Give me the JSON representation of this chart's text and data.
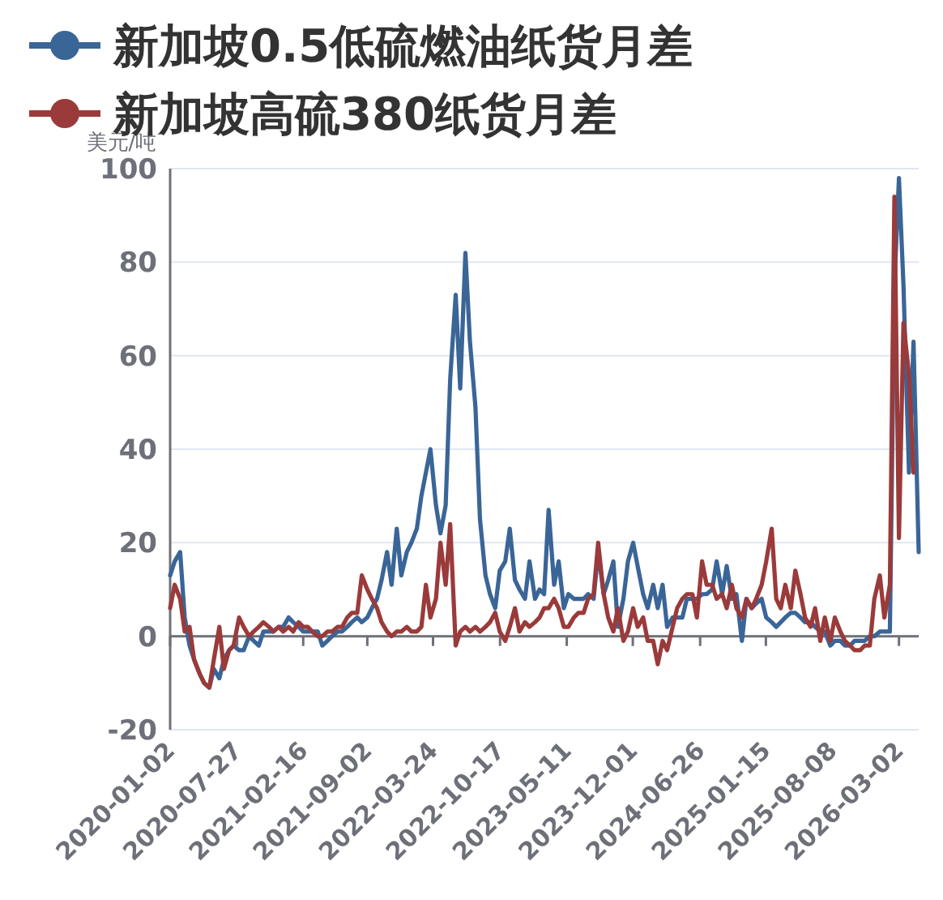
{
  "chart_data": {
    "type": "line",
    "ylabel": "美元/吨",
    "x": [
      "2020-01-02",
      "2020-01-16",
      "2020-02-02",
      "2020-02-16",
      "2020-03-02",
      "2020-03-16",
      "2020-04-02",
      "2020-04-16",
      "2020-05-02",
      "2020-05-16",
      "2020-06-02",
      "2020-06-16",
      "2020-07-02",
      "2020-07-16",
      "2020-08-02",
      "2020-08-16",
      "2020-09-02",
      "2020-09-16",
      "2020-10-02",
      "2020-10-16",
      "2020-11-02",
      "2020-11-16",
      "2020-12-02",
      "2020-12-16",
      "2021-01-02",
      "2021-01-16",
      "2021-02-02",
      "2021-02-16",
      "2021-03-02",
      "2021-03-16",
      "2021-04-02",
      "2021-04-16",
      "2021-05-02",
      "2021-05-16",
      "2021-06-02",
      "2021-06-16",
      "2021-07-02",
      "2021-07-16",
      "2021-08-02",
      "2021-08-16",
      "2021-09-02",
      "2021-09-16",
      "2021-10-02",
      "2021-10-16",
      "2021-11-02",
      "2021-11-16",
      "2021-12-02",
      "2021-12-16",
      "2022-01-02",
      "2022-01-16",
      "2022-02-02",
      "2022-02-16",
      "2022-03-02",
      "2022-03-16",
      "2022-04-02",
      "2022-04-16",
      "2022-05-02",
      "2022-05-16",
      "2022-06-02",
      "2022-06-16",
      "2022-07-02",
      "2022-07-16",
      "2022-08-02",
      "2022-08-16",
      "2022-09-02",
      "2022-09-16",
      "2022-10-02",
      "2022-10-16",
      "2022-11-02",
      "2022-11-16",
      "2022-12-02",
      "2022-12-16",
      "2023-01-02",
      "2023-01-16",
      "2023-02-02",
      "2023-02-16",
      "2023-03-02",
      "2023-03-16",
      "2023-04-02",
      "2023-04-16",
      "2023-05-02",
      "2023-05-16",
      "2023-06-02",
      "2023-06-16",
      "2023-07-02",
      "2023-07-16",
      "2023-08-02",
      "2023-08-16",
      "2023-09-02",
      "2023-09-16",
      "2023-10-02",
      "2023-10-16",
      "2023-11-02",
      "2023-11-16",
      "2023-12-02",
      "2023-12-16",
      "2024-01-02",
      "2024-01-16",
      "2024-02-02",
      "2024-02-16",
      "2024-03-02",
      "2024-03-16",
      "2024-04-02",
      "2024-04-16",
      "2024-05-02",
      "2024-05-16",
      "2024-06-02",
      "2024-06-16",
      "2024-07-02",
      "2024-07-16",
      "2024-08-02",
      "2024-08-16",
      "2024-09-02",
      "2024-09-16",
      "2024-10-02",
      "2024-10-16",
      "2024-11-02",
      "2024-11-16",
      "2024-12-02",
      "2024-12-16",
      "2025-01-02",
      "2025-01-16",
      "2025-02-02",
      "2025-02-16",
      "2025-03-02",
      "2025-03-16",
      "2025-04-02",
      "2025-04-16",
      "2025-05-02",
      "2025-05-16",
      "2025-06-02",
      "2025-06-16",
      "2025-07-02",
      "2025-07-16",
      "2025-08-02",
      "2025-08-16",
      "2025-09-02",
      "2025-09-16",
      "2025-10-02",
      "2025-10-16",
      "2025-11-02",
      "2025-11-16",
      "2025-12-02",
      "2025-12-16",
      "2026-01-02",
      "2026-01-16",
      "2026-02-02",
      "2026-02-16",
      "2026-03-02",
      "2026-03-16",
      "2026-04-02",
      "2026-04-16",
      "2026-05-02"
    ],
    "series": [
      {
        "name": "新加坡0.5低硫燃油纸货月差",
        "color": "#3a6597",
        "values": [
          13,
          16,
          18,
          4,
          -2,
          -5,
          -8,
          -10,
          -11,
          -7,
          -9,
          -5,
          -3,
          -2,
          -3,
          -3,
          0,
          -1,
          -2,
          1,
          1,
          1,
          2,
          2,
          4,
          3,
          2,
          1,
          1,
          1,
          1,
          -2,
          -1,
          0,
          1,
          1,
          2,
          3,
          4,
          3,
          4,
          6,
          8,
          12,
          18,
          11,
          23,
          13,
          18,
          20,
          23,
          30,
          35,
          40,
          28,
          22,
          28,
          55,
          73,
          53,
          82,
          63,
          49,
          25,
          13,
          9,
          6,
          14,
          16,
          23,
          12,
          10,
          8,
          16,
          8,
          10,
          9,
          27,
          11,
          16,
          6,
          9,
          8,
          8,
          8,
          9,
          8,
          18,
          9,
          12,
          16,
          2,
          8,
          16,
          20,
          15,
          9,
          6,
          11,
          6,
          11,
          2,
          4,
          4,
          4,
          8,
          8,
          8,
          9,
          9,
          10,
          16,
          9,
          15,
          8,
          9,
          -1,
          8,
          6,
          7,
          8,
          4,
          3,
          2,
          3,
          4,
          5,
          5,
          4,
          3,
          3,
          2,
          1,
          1,
          -2,
          -1,
          -1,
          -2,
          -2,
          -1,
          -1,
          -1,
          0,
          0,
          1,
          1,
          1,
          75,
          98,
          75,
          35,
          63,
          18
        ]
      },
      {
        "name": "新加坡高硫380纸货月差",
        "color": "#9b3a3a",
        "values": [
          6,
          11,
          8,
          1,
          2,
          -5,
          -8,
          -10,
          -11,
          -5,
          2,
          -7,
          -3,
          -2,
          4,
          2,
          0,
          1,
          2,
          3,
          2,
          1,
          2,
          1,
          2,
          1,
          3,
          2,
          2,
          1,
          0,
          0,
          1,
          1,
          2,
          2,
          4,
          5,
          5,
          13,
          10,
          8,
          6,
          3,
          1,
          0,
          1,
          1,
          2,
          1,
          1,
          2,
          11,
          4,
          8,
          20,
          11,
          24,
          -2,
          1,
          2,
          1,
          2,
          1,
          2,
          3,
          5,
          1,
          -1,
          2,
          6,
          1,
          3,
          2,
          3,
          4,
          6,
          6,
          8,
          6,
          2,
          2,
          4,
          5,
          5,
          8,
          9,
          20,
          9,
          4,
          1,
          6,
          -1,
          1,
          6,
          2,
          4,
          -1,
          -1,
          -6,
          -1,
          -3,
          2,
          6,
          8,
          9,
          9,
          4,
          16,
          11,
          11,
          8,
          9,
          6,
          11,
          6,
          4,
          8,
          6,
          8,
          11,
          16,
          23,
          8,
          6,
          11,
          6,
          14,
          9,
          4,
          2,
          6,
          -1,
          4,
          -1,
          4,
          1,
          -1,
          -2,
          -3,
          -3,
          -2,
          -2,
          8,
          13,
          4,
          11,
          94,
          21,
          67,
          56,
          35,
          null
        ]
      }
    ],
    "xlim": [
      "2020-01-02",
      "2026-05-02"
    ],
    "xticks": [
      "2020-01-02",
      "2020-07-27",
      "2021-02-16",
      "2021-09-02",
      "2022-03-24",
      "2022-10-17",
      "2023-05-11",
      "2023-12-01",
      "2024-06-26",
      "2025-01-15",
      "2025-08-08",
      "2026-03-02"
    ],
    "ylim": [
      -20,
      100
    ],
    "yticks": [
      -20,
      0,
      20,
      40,
      60,
      80,
      100
    ],
    "grid": "y",
    "legend": "top left",
    "marker": "none",
    "line_style": "solid"
  }
}
